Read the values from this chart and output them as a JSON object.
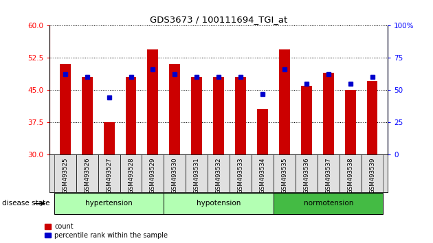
{
  "title": "GDS3673 / 100111694_TGI_at",
  "samples": [
    "GSM493525",
    "GSM493526",
    "GSM493527",
    "GSM493528",
    "GSM493529",
    "GSM493530",
    "GSM493531",
    "GSM493532",
    "GSM493533",
    "GSM493534",
    "GSM493535",
    "GSM493536",
    "GSM493537",
    "GSM493538",
    "GSM493539"
  ],
  "counts": [
    51.0,
    48.0,
    37.5,
    48.0,
    54.5,
    51.0,
    48.0,
    48.0,
    48.0,
    40.5,
    54.5,
    46.0,
    49.0,
    45.0,
    47.0
  ],
  "percentiles": [
    62,
    60,
    44,
    60,
    66,
    62,
    60,
    60,
    60,
    47,
    66,
    55,
    62,
    55,
    60
  ],
  "bar_color": "#cc0000",
  "dot_color": "#0000cc",
  "ylim_left": [
    30,
    60
  ],
  "ylim_right": [
    0,
    100
  ],
  "yticks_left": [
    30,
    37.5,
    45,
    52.5,
    60
  ],
  "yticks_right": [
    0,
    25,
    50,
    75,
    100
  ],
  "groups": [
    {
      "label": "hypertension",
      "start": 0,
      "end": 4,
      "color": "#b3ffb3"
    },
    {
      "label": "hypotension",
      "start": 5,
      "end": 9,
      "color": "#b3ffb3"
    },
    {
      "label": "normotension",
      "start": 10,
      "end": 14,
      "color": "#44bb44"
    }
  ],
  "group_label": "disease state",
  "legend_count": "count",
  "legend_pct": "percentile rank within the sample",
  "grid_color": "#000000",
  "background_color": "#ffffff"
}
